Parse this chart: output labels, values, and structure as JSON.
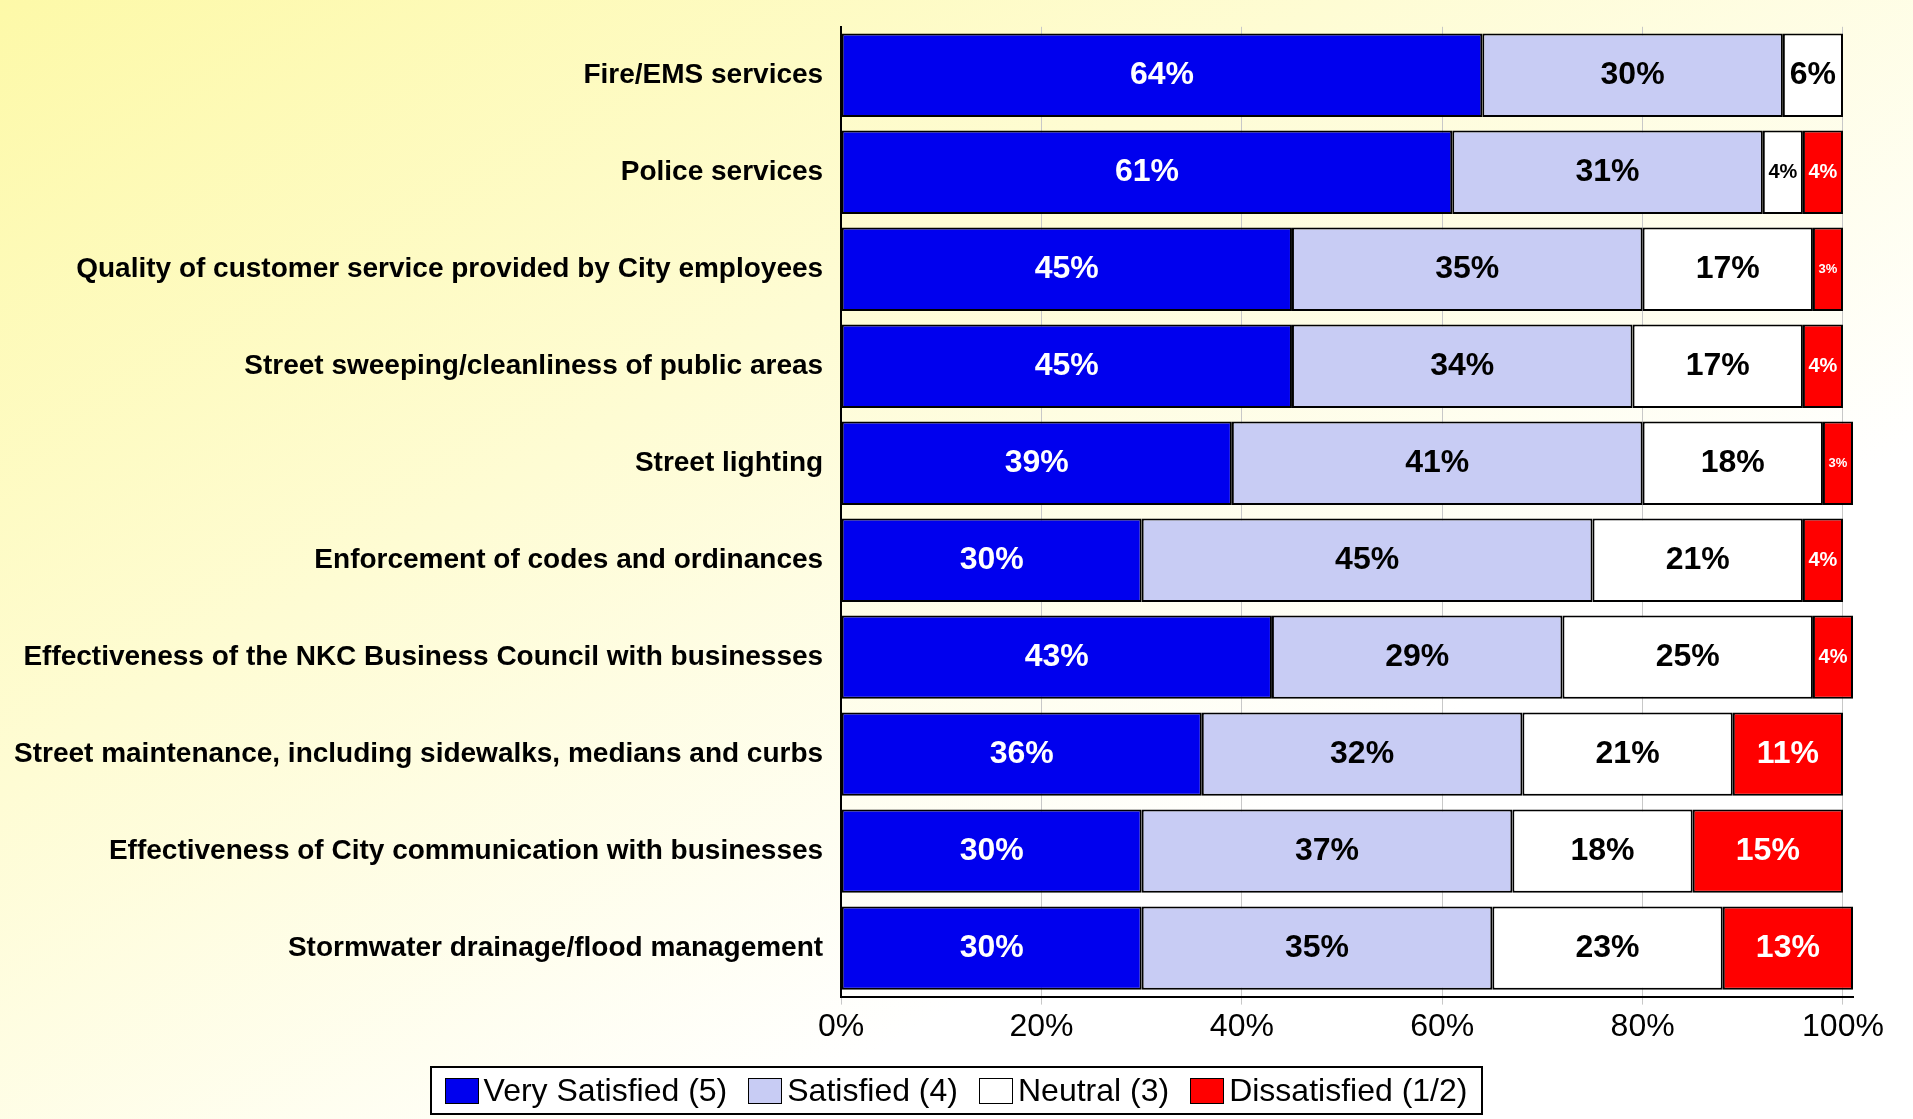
{
  "chart_data": {
    "type": "bar",
    "orientation": "horizontal",
    "stacked": true,
    "categories": [
      "Fire/EMS services",
      "Police services",
      "Quality of customer service provided by City employees",
      "Street sweeping/cleanliness of public areas",
      "Street lighting",
      "Enforcement of codes and ordinances",
      "Effectiveness of the NKC Business Council with businesses",
      "Street maintenance, including sidewalks, medians and curbs",
      "Effectiveness of City communication with businesses",
      "Stormwater drainage/flood management"
    ],
    "series": [
      {
        "name": "Very Satisfied (5)",
        "color": "#0000ee",
        "values": [
          64,
          61,
          45,
          45,
          39,
          30,
          43,
          36,
          30,
          30
        ],
        "value_labels": [
          "64%",
          "61%",
          "45%",
          "45%",
          "39%",
          "30%",
          "43%",
          "36%",
          "30%",
          "30%"
        ]
      },
      {
        "name": "Satisfied (4)",
        "color": "#c8ccf4",
        "values": [
          30,
          31,
          35,
          34,
          41,
          45,
          29,
          32,
          37,
          35
        ],
        "value_labels": [
          "30%",
          "31%",
          "35%",
          "34%",
          "41%",
          "45%",
          "29%",
          "32%",
          "37%",
          "35%"
        ]
      },
      {
        "name": "Neutral (3)",
        "color": "#ffffff",
        "values": [
          6,
          4,
          17,
          17,
          18,
          21,
          25,
          21,
          18,
          23
        ],
        "value_labels": [
          "6%",
          "4%",
          "17%",
          "17%",
          "18%",
          "21%",
          "25%",
          "21%",
          "18%",
          "23%"
        ]
      },
      {
        "name": "Dissatisfied (1/2)",
        "color": "#ff0000",
        "values": [
          null,
          4,
          3,
          4,
          3,
          4,
          4,
          11,
          15,
          13
        ],
        "value_labels": [
          null,
          "4%",
          "3%",
          "4%",
          "3%",
          "4%",
          "4%",
          "11%",
          "15%",
          "13%"
        ]
      }
    ],
    "xlim": [
      0,
      101
    ],
    "xticks": [
      {
        "value": 0,
        "label": "0%"
      },
      {
        "value": 20,
        "label": "20%"
      },
      {
        "value": 40,
        "label": "40%"
      },
      {
        "value": 60,
        "label": "60%"
      },
      {
        "value": 80,
        "label": "80%"
      },
      {
        "value": 100,
        "label": "100%"
      }
    ],
    "grid": "x",
    "legend": "bottom"
  }
}
